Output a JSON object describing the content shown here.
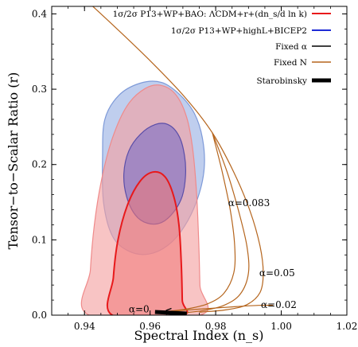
{
  "chart_data": {
    "type": "contour",
    "xlabel": "Spectral Index (n_s)",
    "ylabel": "Tensor−to−Scalar Ratio (r)",
    "xlim": [
      0.93,
      1.02
    ],
    "ylim": [
      0.0,
      0.41
    ],
    "xticks": [
      "0.94",
      "0.96",
      "0.98",
      "1.00",
      "1.02"
    ],
    "yticks": [
      "0.0",
      "0.1",
      "0.2",
      "0.3",
      "0.4"
    ],
    "legend_position": "top-right",
    "legend": [
      {
        "label": "1σ/2σ P13+WP+BAO: ΛCDM+r+(dn_s/d ln k)",
        "color": "#e8191b",
        "width": 2
      },
      {
        "label": "1σ/2σ P13+WP+highL+BICEP2",
        "color": "#1f2bd6",
        "width": 2
      },
      {
        "label": "Fixed α",
        "color": "#000000",
        "width": 1.5
      },
      {
        "label": "Fixed N",
        "color": "#b5651d",
        "width": 1.5
      },
      {
        "label": "Starobinsky",
        "color": "#000000",
        "width": 5
      }
    ],
    "contours": [
      {
        "name": "bicep2_2sigma",
        "fill": "#a9bde8",
        "stroke": "#7e9ad8",
        "opacity": 0.75,
        "points": [
          [
            0.9455,
            0.21
          ],
          [
            0.9462,
            0.26
          ],
          [
            0.9505,
            0.292
          ],
          [
            0.957,
            0.308
          ],
          [
            0.9635,
            0.309
          ],
          [
            0.969,
            0.293
          ],
          [
            0.9735,
            0.268
          ],
          [
            0.976,
            0.234
          ],
          [
            0.9765,
            0.195
          ],
          [
            0.9745,
            0.155
          ],
          [
            0.9705,
            0.118
          ],
          [
            0.9655,
            0.093
          ],
          [
            0.9595,
            0.081
          ],
          [
            0.9535,
            0.085
          ],
          [
            0.9485,
            0.105
          ],
          [
            0.9458,
            0.15
          ]
        ]
      },
      {
        "name": "p13_2sigma",
        "fill": "#f4a0a0",
        "stroke": "#ef8a8a",
        "opacity": 0.62,
        "points": [
          [
            0.9415,
            0.0
          ],
          [
            0.9418,
            0.06
          ],
          [
            0.943,
            0.12
          ],
          [
            0.9452,
            0.18
          ],
          [
            0.9485,
            0.235
          ],
          [
            0.953,
            0.278
          ],
          [
            0.9585,
            0.301
          ],
          [
            0.9635,
            0.305
          ],
          [
            0.968,
            0.292
          ],
          [
            0.9712,
            0.262
          ],
          [
            0.973,
            0.22
          ],
          [
            0.9742,
            0.16
          ],
          [
            0.9748,
            0.1
          ],
          [
            0.9752,
            0.04
          ],
          [
            0.9752,
            0.0
          ]
        ]
      },
      {
        "name": "bicep2_1sigma",
        "fill": "#8a79c4",
        "stroke": "#5b4ea8",
        "opacity": 0.72,
        "points": [
          [
            0.952,
            0.188
          ],
          [
            0.9535,
            0.218
          ],
          [
            0.957,
            0.24
          ],
          [
            0.9615,
            0.253
          ],
          [
            0.9655,
            0.253
          ],
          [
            0.9688,
            0.238
          ],
          [
            0.9705,
            0.212
          ],
          [
            0.9708,
            0.185
          ],
          [
            0.9698,
            0.158
          ],
          [
            0.9672,
            0.137
          ],
          [
            0.9635,
            0.123
          ],
          [
            0.9592,
            0.122
          ],
          [
            0.9555,
            0.133
          ],
          [
            0.9528,
            0.158
          ]
        ]
      },
      {
        "name": "p13_1sigma",
        "fill": "#f07878",
        "stroke": "#e8191b",
        "opacity": 0.55,
        "points": [
          [
            0.9485,
            0.0
          ],
          [
            0.9488,
            0.05
          ],
          [
            0.9502,
            0.1
          ],
          [
            0.953,
            0.145
          ],
          [
            0.9568,
            0.177
          ],
          [
            0.9608,
            0.19
          ],
          [
            0.9645,
            0.184
          ],
          [
            0.9672,
            0.158
          ],
          [
            0.9688,
            0.12
          ],
          [
            0.9695,
            0.07
          ],
          [
            0.9698,
            0.02
          ],
          [
            0.9698,
            0.0
          ]
        ]
      }
    ],
    "lines": [
      {
        "name": "fixed_N_outer",
        "color": "#b5651d",
        "width": 1.2,
        "points": [
          [
            0.935,
            0.44
          ],
          [
            0.9475,
            0.39
          ],
          [
            0.9595,
            0.34
          ],
          [
            0.9705,
            0.29
          ],
          [
            0.979,
            0.242
          ],
          [
            0.9855,
            0.19
          ],
          [
            0.9905,
            0.138
          ],
          [
            0.9935,
            0.092
          ],
          [
            0.9945,
            0.056
          ],
          [
            0.9935,
            0.03
          ],
          [
            0.9895,
            0.014
          ],
          [
            0.983,
            0.007
          ],
          [
            0.975,
            0.004
          ]
        ]
      },
      {
        "name": "fixed_N_mid",
        "color": "#b5651d",
        "width": 1.2,
        "points": [
          [
            0.979,
            0.242
          ],
          [
            0.9835,
            0.19
          ],
          [
            0.987,
            0.138
          ],
          [
            0.9895,
            0.092
          ],
          [
            0.99,
            0.056
          ],
          [
            0.9875,
            0.028
          ],
          [
            0.9825,
            0.013
          ],
          [
            0.976,
            0.006
          ],
          [
            0.97,
            0.003
          ]
        ]
      },
      {
        "name": "fixed_N_inner",
        "color": "#b5651d",
        "width": 1.2,
        "points": [
          [
            0.979,
            0.242
          ],
          [
            0.982,
            0.19
          ],
          [
            0.9845,
            0.138
          ],
          [
            0.9858,
            0.092
          ],
          [
            0.9855,
            0.056
          ],
          [
            0.9825,
            0.029
          ],
          [
            0.9775,
            0.015
          ],
          [
            0.971,
            0.008
          ],
          [
            0.965,
            0.005
          ]
        ]
      },
      {
        "name": "fixed_N_low",
        "color": "#b5651d",
        "width": 1.2,
        "points": [
          [
            0.965,
            0.005
          ],
          [
            0.975,
            0.008
          ],
          [
            0.985,
            0.011
          ],
          [
            0.993,
            0.013
          ],
          [
            0.9975,
            0.013
          ]
        ]
      },
      {
        "name": "fixed_alpha_short",
        "color": "#000000",
        "width": 1.3,
        "points": [
          [
            0.9648,
            0.006
          ],
          [
            0.9665,
            0.009
          ]
        ]
      }
    ],
    "starobinsky": [
      [
        0.9615,
        0.0042
      ],
      [
        0.9712,
        0.0021
      ]
    ],
    "annotations": [
      {
        "text": "α=0.083",
        "x": 0.9838,
        "y": 0.145
      },
      {
        "text": "α=0.05",
        "x": 0.9933,
        "y": 0.052
      },
      {
        "text": "α=0.02",
        "x": 0.9938,
        "y": 0.0095
      },
      {
        "text": "α=0",
        "x": 0.9535,
        "y": 0.0035
      }
    ]
  }
}
